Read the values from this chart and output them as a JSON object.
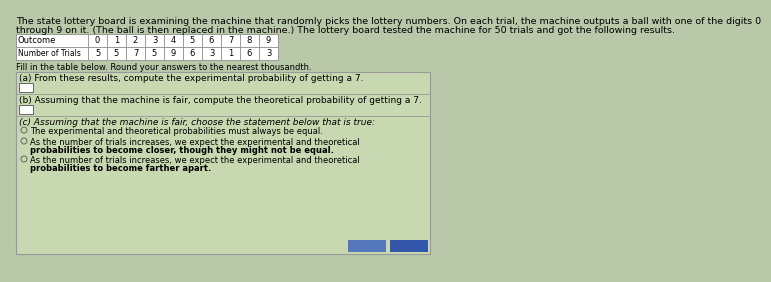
{
  "title_line1": "The state lottery board is examining the machine that randomly picks the lottery numbers. On each trial, the machine outputs a ball with one of the digits 0",
  "title_line2": "through 9 on it. (The ball is then replaced in the machine.) The lottery board tested the machine for 50 trials and got the following results.",
  "outcomes": [
    "0",
    "1",
    "2",
    "3",
    "4",
    "5",
    "6",
    "7",
    "8",
    "9"
  ],
  "trials": [
    5,
    5,
    7,
    5,
    9,
    6,
    3,
    1,
    6,
    3
  ],
  "fill_instruction": "Fill in the table below. Round your answers to the nearest thousandth.",
  "part_a_label": "(a) From these results, compute the experimental probability of getting a 7.",
  "part_b_label": "(b) Assuming that the machine is fair, compute the theoretical probability of getting a 7.",
  "part_c_label": "(c) Assuming that the machine is fair, choose the statement below that is true:",
  "option1": "The experimental and theoretical probabilities must always be equal.",
  "option2_line1": "As the number of trials increases, we expect the experimental and theoretical",
  "option2_line2": "probabilities to become closer, though they might not be equal.",
  "option3_line1": "As the number of trials increases, we expect the experimental and theoretical",
  "option3_line2": "probabilities to become farther apart.",
  "bg_color": "#b8c8a8",
  "table_bg": "#ffffff",
  "box_bg": "#c8d8b0",
  "border_color": "#999999",
  "input_box_color": "#ffffff",
  "button_color_left": "#5577bb",
  "button_color_right": "#3355aa",
  "title_fontsize": 6.8,
  "body_fontsize": 6.5,
  "small_fontsize": 6.0
}
